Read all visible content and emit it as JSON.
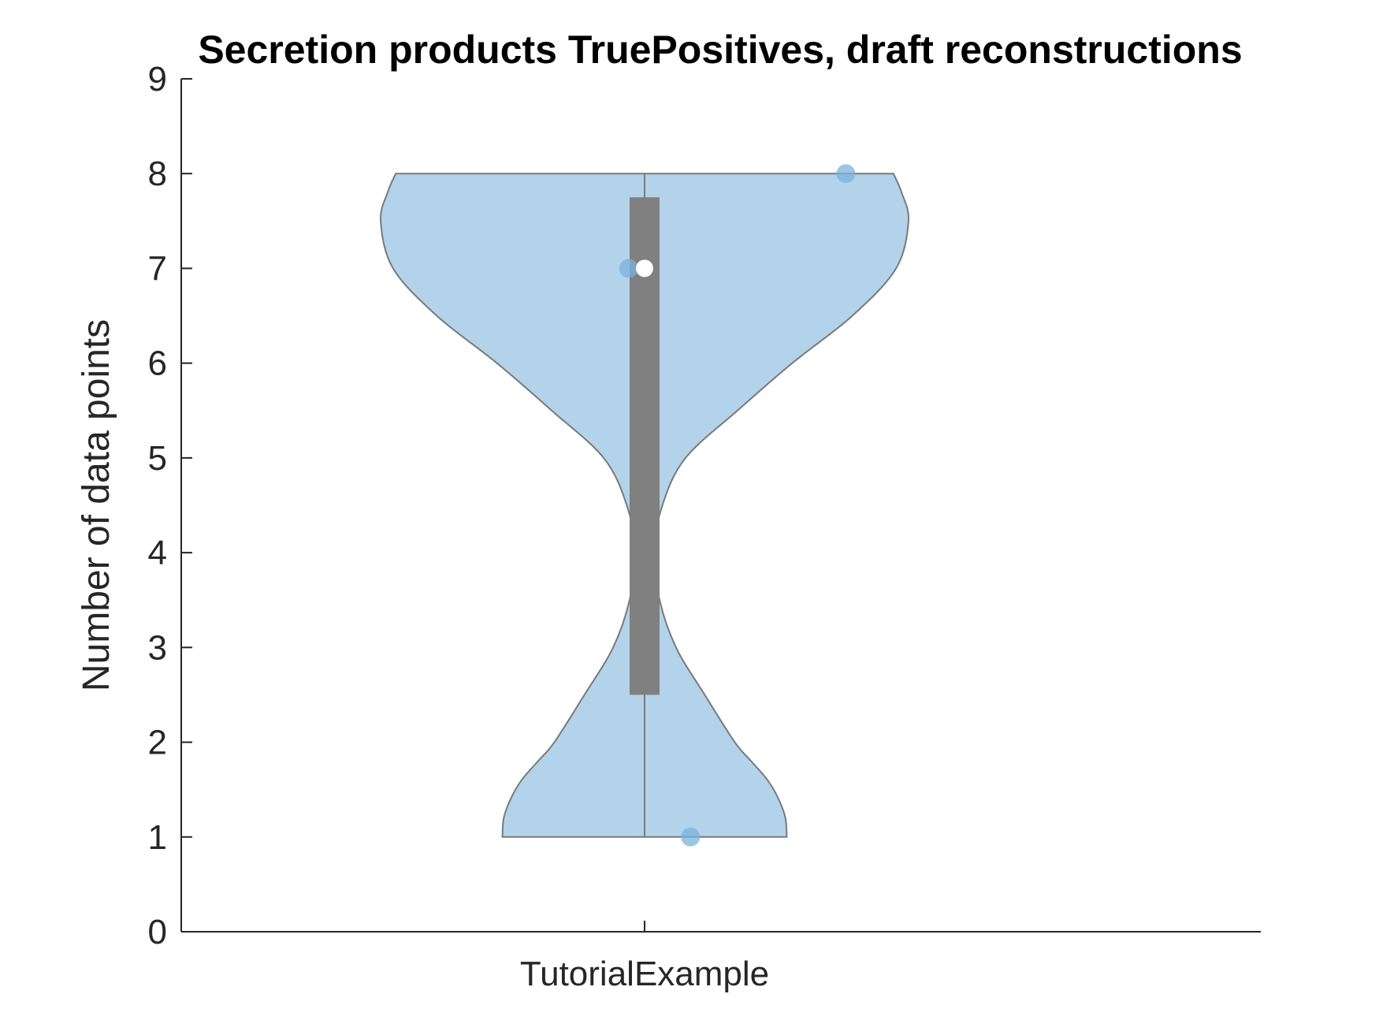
{
  "chart_data": {
    "type": "violin",
    "title": "Secretion products TruePositives, draft reconstructions",
    "xlabel": "",
    "ylabel": "Number of data points",
    "categories": [
      "TutorialExample"
    ],
    "ylim": [
      0,
      9
    ],
    "yticks": [
      0,
      1,
      2,
      3,
      4,
      5,
      6,
      7,
      8,
      9
    ],
    "grid": false,
    "series": [
      {
        "category": "TutorialExample",
        "values": [
          1,
          7,
          8
        ],
        "median": 7,
        "q1": 2.5,
        "q3": 7.75,
        "min": 1,
        "max": 8,
        "density": [
          {
            "y": 1.0,
            "w": 0.52
          },
          {
            "y": 1.2,
            "w": 0.515
          },
          {
            "y": 1.4,
            "w": 0.49
          },
          {
            "y": 1.6,
            "w": 0.45
          },
          {
            "y": 1.8,
            "w": 0.39
          },
          {
            "y": 2.0,
            "w": 0.33
          },
          {
            "y": 2.5,
            "w": 0.22
          },
          {
            "y": 3.0,
            "w": 0.115
          },
          {
            "y": 3.5,
            "w": 0.055
          },
          {
            "y": 4.0,
            "w": 0.035
          },
          {
            "y": 4.5,
            "w": 0.065
          },
          {
            "y": 5.0,
            "w": 0.15
          },
          {
            "y": 5.5,
            "w": 0.34
          },
          {
            "y": 6.0,
            "w": 0.54
          },
          {
            "y": 6.5,
            "w": 0.76
          },
          {
            "y": 7.0,
            "w": 0.92
          },
          {
            "y": 7.5,
            "w": 0.965
          },
          {
            "y": 7.8,
            "w": 0.94
          },
          {
            "y": 8.0,
            "w": 0.91
          }
        ],
        "points": [
          {
            "x_offset": -0.058,
            "y": 7
          },
          {
            "x_offset": 0.168,
            "y": 1
          },
          {
            "x_offset": 0.736,
            "y": 8
          }
        ]
      }
    ],
    "colors": {
      "violin_fill": "#b2d3ea",
      "violin_edge": "#7a7a7a",
      "box_fill": "#808080",
      "whisker": "#7a7a7a",
      "median_marker": "#ffffff",
      "points": "#7ab3de"
    }
  }
}
